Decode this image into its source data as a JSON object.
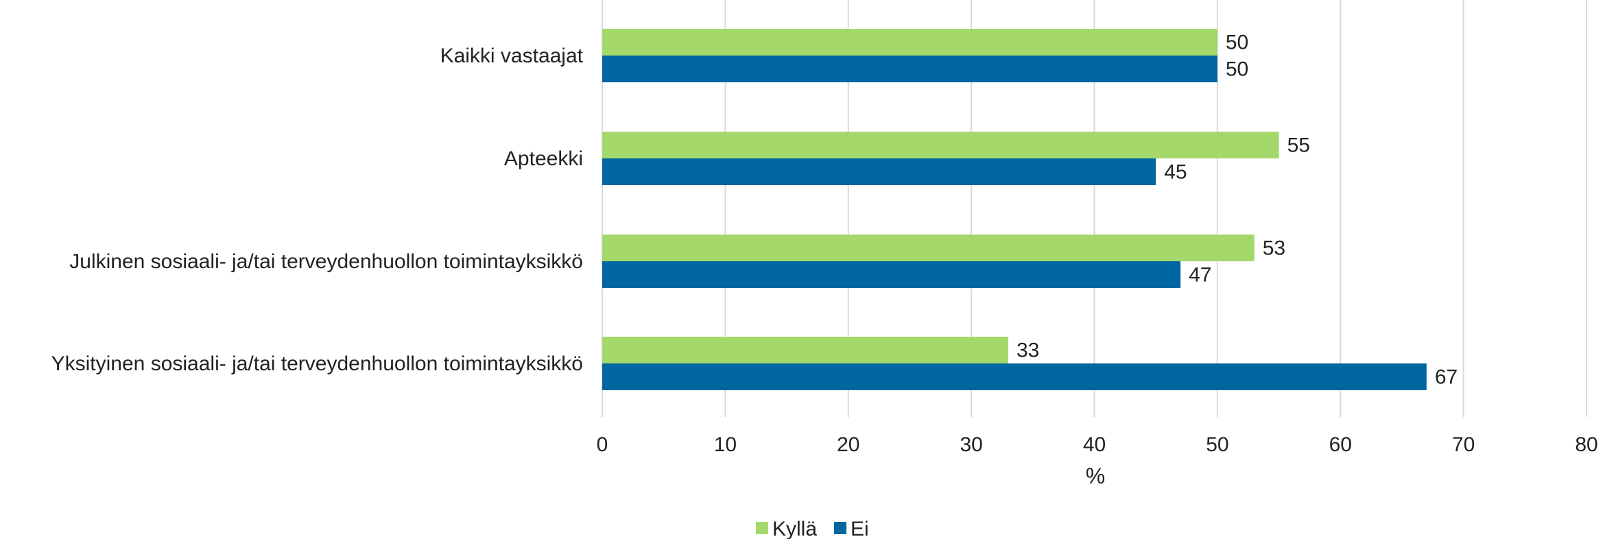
{
  "chart_data": {
    "type": "bar",
    "orientation": "horizontal",
    "categories": [
      "Kaikki vastaajat",
      "Apteekki",
      "Julkinen sosiaali- ja/tai terveydenhuollon toimintayksikkö",
      "Yksityinen sosiaali- ja/tai terveydenhuollon toimintayksikkö"
    ],
    "series": [
      {
        "name": "Kyllä",
        "color": "#a5d86b",
        "values": [
          50,
          55,
          53,
          33
        ]
      },
      {
        "name": "Ei",
        "color": "#0066a1",
        "values": [
          50,
          45,
          47,
          67
        ]
      }
    ],
    "title": "",
    "xlabel": "%",
    "ylabel": "",
    "xlim": [
      0,
      80
    ],
    "xticks": [
      0,
      10,
      20,
      30,
      40,
      50,
      60,
      70,
      80
    ],
    "grid": "vertical",
    "gridColor": "#d9d9d9",
    "legend_position": "bottom-center"
  }
}
